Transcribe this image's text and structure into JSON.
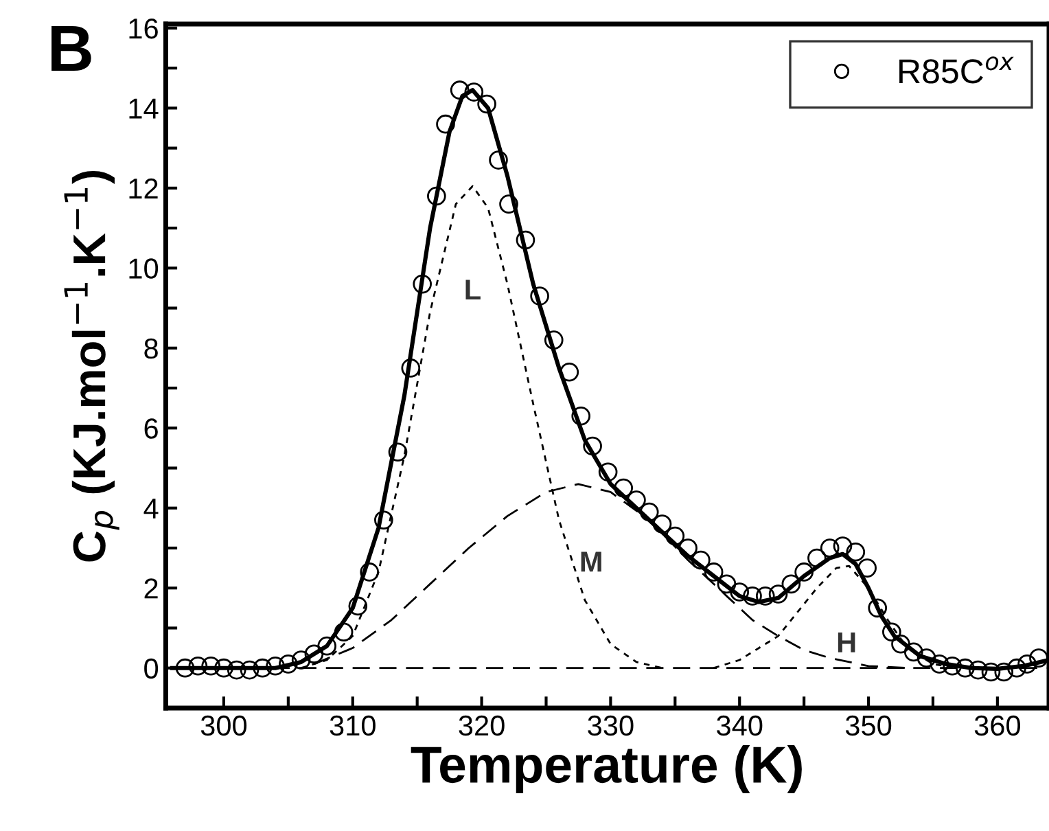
{
  "chart_data": {
    "type": "line",
    "title": "B",
    "xlabel": "Temperature (K)",
    "ylabel": "C$_{p}$ (KJ.mol$^{−1}$.K$^{−1}$)",
    "xlim": [
      295.5,
      364
    ],
    "ylim": [
      -1,
      16.1
    ],
    "xticks": [
      300,
      {
        "value": 305,
        "label": null
      },
      310,
      {
        "value": 315,
        "label": null
      },
      320,
      {
        "value": 325,
        "label": null
      },
      330,
      {
        "value": 335,
        "label": null
      },
      340,
      {
        "value": 345,
        "label": null
      },
      350,
      {
        "value": 355,
        "label": null
      },
      360
    ],
    "yticks": [
      0,
      {
        "value": 1,
        "label": null
      },
      2,
      {
        "value": 3,
        "label": null
      },
      4,
      {
        "value": 5,
        "label": null
      },
      6,
      {
        "value": 7,
        "label": null
      },
      8,
      {
        "value": 9,
        "label": null
      },
      10,
      {
        "value": 11,
        "label": null
      },
      12,
      {
        "value": 13,
        "label": null
      },
      14,
      {
        "value": 15,
        "label": null
      },
      16
    ],
    "grid": false,
    "legend": "top right",
    "series": [
      {
        "name": "R85C$^{ox}$",
        "type": "scatter",
        "marker": "circle",
        "color": "#000000",
        "x": [
          297,
          298,
          299,
          300,
          301,
          302,
          303,
          304,
          305,
          306,
          307,
          308,
          309.3,
          310.4,
          311.3,
          312.4,
          313.5,
          314.5,
          315.4,
          316.5,
          317.2,
          318.3,
          319.4,
          320.4,
          321.3,
          322.1,
          323.4,
          324.5,
          325.6,
          326.8,
          327.7,
          328.6,
          329.8,
          331,
          332,
          333,
          334,
          335,
          336,
          337,
          338,
          339,
          340,
          341,
          342,
          343,
          344,
          345,
          346,
          347,
          348,
          349,
          349.9,
          350.7,
          351.8,
          352.5,
          353.5,
          354.5,
          355.5,
          356.5,
          357.5,
          358.5,
          359.5,
          360.5,
          361.5,
          362.3,
          363.2
        ],
        "values": [
          0,
          0.05,
          0.05,
          0,
          -0.05,
          -0.05,
          0,
          0.05,
          0.1,
          0.2,
          0.35,
          0.55,
          0.9,
          1.55,
          2.4,
          3.7,
          5.4,
          7.5,
          9.6,
          11.8,
          13.6,
          14.45,
          14.4,
          14.1,
          12.7,
          11.6,
          10.7,
          9.3,
          8.2,
          7.4,
          6.3,
          5.55,
          4.9,
          4.5,
          4.2,
          3.9,
          3.6,
          3.3,
          3.0,
          2.7,
          2.4,
          2.1,
          1.9,
          1.8,
          1.8,
          1.85,
          2.1,
          2.4,
          2.75,
          3.0,
          3.05,
          2.9,
          2.5,
          1.5,
          0.9,
          0.6,
          0.4,
          0.25,
          0.1,
          0.05,
          0,
          -0.05,
          -0.1,
          -0.1,
          0,
          0.1,
          0.25
        ]
      },
      {
        "line_style": "solid",
        "color": "#000000",
        "x": [
          296,
          304,
          306,
          308,
          310,
          312,
          314,
          316,
          317.5,
          318.5,
          319.3,
          320.5,
          322,
          324,
          326,
          328,
          330,
          332,
          334,
          336,
          338,
          340,
          341.5,
          343,
          345,
          347,
          348,
          349,
          350,
          351,
          352,
          354,
          356,
          358,
          360,
          362,
          364
        ],
        "values": [
          0,
          0,
          0.15,
          0.55,
          1.5,
          3.5,
          6.8,
          11,
          13.4,
          14.3,
          14.45,
          14.0,
          12.3,
          9.6,
          7.5,
          5.7,
          4.6,
          4.0,
          3.4,
          2.8,
          2.3,
          1.8,
          1.65,
          1.75,
          2.3,
          2.75,
          2.85,
          2.6,
          2.0,
          1.3,
          0.8,
          0.3,
          0.1,
          0,
          -0.02,
          0.05,
          0.2
        ]
      },
      {
        "line_style": "dotted",
        "color": "#000000",
        "x": [
          306,
          308,
          310,
          312,
          314,
          316,
          318,
          319.3,
          320.5,
          322,
          324,
          326,
          328,
          330,
          332,
          334
        ],
        "values": [
          0,
          0.2,
          0.8,
          2.4,
          5.3,
          8.9,
          11.6,
          12.05,
          11.5,
          9.6,
          6.6,
          3.7,
          1.7,
          0.6,
          0.15,
          0
        ]
      },
      {
        "line_style": "dashed",
        "color": "#000000",
        "x": [
          307,
          310,
          313,
          316,
          319,
          322,
          325,
          327.5,
          330,
          333,
          336,
          339,
          341,
          343,
          345,
          347,
          350,
          353
        ],
        "values": [
          0.1,
          0.5,
          1.2,
          2.1,
          3.0,
          3.8,
          4.4,
          4.6,
          4.4,
          3.7,
          2.7,
          1.8,
          1.2,
          0.8,
          0.45,
          0.25,
          0.05,
          0
        ]
      },
      {
        "line_style": "dotted",
        "color": "#000000",
        "x": [
          338,
          340,
          342,
          343,
          344,
          346,
          347.5,
          348.5,
          350,
          351.5,
          353,
          355,
          357
        ],
        "values": [
          0,
          0.2,
          0.6,
          0.8,
          1.2,
          2.0,
          2.5,
          2.55,
          2.0,
          1.2,
          0.5,
          0.1,
          0
        ]
      }
    ],
    "ref_lines": [
      {
        "axis": "y",
        "value": 0,
        "line_style": "dashed",
        "color": "#000000"
      }
    ],
    "annotations": [
      "L",
      "M",
      "H"
    ]
  }
}
